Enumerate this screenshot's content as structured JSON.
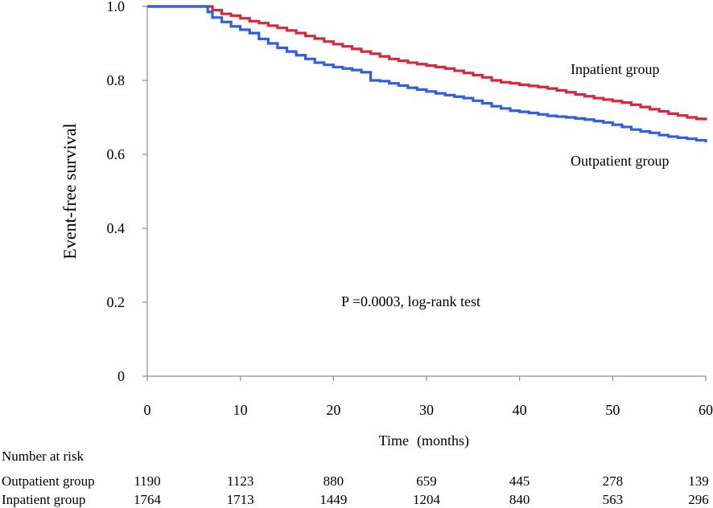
{
  "chart_data": {
    "type": "line",
    "subtype": "kaplan-meier",
    "ylabel": "Event-free survival",
    "xlabel": "Time",
    "xlabel_unit": "(months)",
    "xlim": [
      0,
      60
    ],
    "ylim": [
      0,
      1.0
    ],
    "x_ticks": [
      0,
      10,
      20,
      30,
      40,
      50,
      60
    ],
    "x_tick_labels": [
      "0",
      "10",
      "20",
      "30",
      "40",
      "50",
      "60"
    ],
    "y_ticks": [
      0,
      0.2,
      0.4,
      0.6,
      0.8,
      1.0
    ],
    "y_tick_labels": [
      "0",
      "0.2",
      "0.4",
      "0.6",
      "0.8",
      "1.0"
    ],
    "grid": false,
    "annotation": "P =0.0003, log-rank test",
    "colors": {
      "inpatient": "#d6283a",
      "outpatient": "#2f5fe0",
      "axis": "#8c8c8c"
    },
    "series": [
      {
        "name": "Inpatient group",
        "label": "Inpatient group",
        "color": "#d6283a",
        "points": [
          [
            0,
            1.0
          ],
          [
            6,
            1.0
          ],
          [
            7,
            0.99
          ],
          [
            8,
            0.98
          ],
          [
            9,
            0.975
          ],
          [
            10,
            0.968
          ],
          [
            11,
            0.96
          ],
          [
            12,
            0.955
          ],
          [
            13,
            0.948
          ],
          [
            14,
            0.942
          ],
          [
            15,
            0.935
          ],
          [
            16,
            0.928
          ],
          [
            17,
            0.92
          ],
          [
            18,
            0.913
          ],
          [
            19,
            0.905
          ],
          [
            20,
            0.898
          ],
          [
            21,
            0.892
          ],
          [
            22,
            0.885
          ],
          [
            23,
            0.878
          ],
          [
            24,
            0.872
          ],
          [
            25,
            0.865
          ],
          [
            26,
            0.858
          ],
          [
            27,
            0.853
          ],
          [
            28,
            0.848
          ],
          [
            29,
            0.844
          ],
          [
            30,
            0.84
          ],
          [
            31,
            0.836
          ],
          [
            32,
            0.832
          ],
          [
            33,
            0.826
          ],
          [
            34,
            0.82
          ],
          [
            35,
            0.814
          ],
          [
            36,
            0.808
          ],
          [
            37,
            0.8
          ],
          [
            38,
            0.795
          ],
          [
            39,
            0.792
          ],
          [
            40,
            0.788
          ],
          [
            41,
            0.785
          ],
          [
            42,
            0.782
          ],
          [
            43,
            0.778
          ],
          [
            44,
            0.773
          ],
          [
            45,
            0.768
          ],
          [
            46,
            0.762
          ],
          [
            47,
            0.757
          ],
          [
            48,
            0.752
          ],
          [
            49,
            0.748
          ],
          [
            50,
            0.744
          ],
          [
            51,
            0.74
          ],
          [
            52,
            0.734
          ],
          [
            53,
            0.728
          ],
          [
            54,
            0.722
          ],
          [
            55,
            0.716
          ],
          [
            56,
            0.71
          ],
          [
            57,
            0.705
          ],
          [
            58,
            0.7
          ],
          [
            59,
            0.696
          ],
          [
            60,
            0.692
          ]
        ]
      },
      {
        "name": "Outpatient group",
        "label": "Outpatient group",
        "color": "#2f5fe0",
        "points": [
          [
            0,
            1.0
          ],
          [
            6,
            1.0
          ],
          [
            6.5,
            0.985
          ],
          [
            7,
            0.97
          ],
          [
            8,
            0.958
          ],
          [
            9,
            0.946
          ],
          [
            10,
            0.937
          ],
          [
            11,
            0.928
          ],
          [
            12,
            0.912
          ],
          [
            13,
            0.9
          ],
          [
            14,
            0.888
          ],
          [
            15,
            0.878
          ],
          [
            16,
            0.868
          ],
          [
            17,
            0.858
          ],
          [
            18,
            0.848
          ],
          [
            19,
            0.842
          ],
          [
            20,
            0.836
          ],
          [
            21,
            0.832
          ],
          [
            22,
            0.828
          ],
          [
            23,
            0.822
          ],
          [
            24,
            0.8
          ],
          [
            25,
            0.798
          ],
          [
            26,
            0.792
          ],
          [
            27,
            0.786
          ],
          [
            28,
            0.78
          ],
          [
            29,
            0.775
          ],
          [
            30,
            0.77
          ],
          [
            31,
            0.765
          ],
          [
            32,
            0.76
          ],
          [
            33,
            0.756
          ],
          [
            34,
            0.752
          ],
          [
            35,
            0.745
          ],
          [
            36,
            0.738
          ],
          [
            37,
            0.73
          ],
          [
            38,
            0.724
          ],
          [
            39,
            0.718
          ],
          [
            40,
            0.715
          ],
          [
            41,
            0.712
          ],
          [
            42,
            0.708
          ],
          [
            43,
            0.704
          ],
          [
            44,
            0.702
          ],
          [
            45,
            0.7
          ],
          [
            46,
            0.697
          ],
          [
            47,
            0.694
          ],
          [
            48,
            0.69
          ],
          [
            49,
            0.686
          ],
          [
            50,
            0.68
          ],
          [
            51,
            0.674
          ],
          [
            52,
            0.667
          ],
          [
            53,
            0.662
          ],
          [
            54,
            0.658
          ],
          [
            55,
            0.652
          ],
          [
            56,
            0.648
          ],
          [
            57,
            0.645
          ],
          [
            58,
            0.642
          ],
          [
            59,
            0.638
          ],
          [
            60,
            0.632
          ]
        ]
      }
    ],
    "risk_table": {
      "title": "Number at risk",
      "times": [
        0,
        10,
        20,
        30,
        40,
        50,
        60
      ],
      "rows": [
        {
          "label": "Outpatient group",
          "values": [
            "1190",
            "1123",
            "880",
            "659",
            "445",
            "278",
            "139"
          ]
        },
        {
          "label": "Inpatient group",
          "values": [
            "1764",
            "1713",
            "1449",
            "1204",
            "840",
            "563",
            "296"
          ]
        }
      ]
    }
  }
}
